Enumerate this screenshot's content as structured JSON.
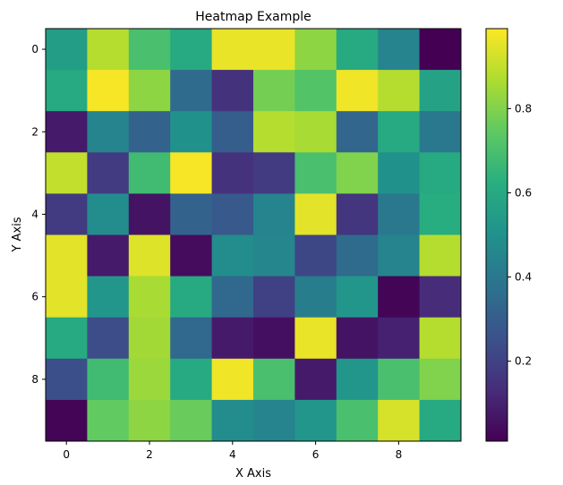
{
  "chart_data": {
    "type": "heatmap",
    "title": "Heatmap Example",
    "xlabel": "X Axis",
    "ylabel": "Y Axis",
    "x_ticks": [
      0,
      2,
      4,
      6,
      8
    ],
    "y_ticks": [
      0,
      2,
      4,
      6,
      8
    ],
    "xlim": [
      -0.5,
      9.5
    ],
    "ylim": [
      9.5,
      -0.5
    ],
    "colormap": "viridis",
    "colorbar": {
      "range": [
        0.01,
        0.99
      ],
      "ticks": [
        0.2,
        0.4,
        0.6,
        0.8
      ],
      "tick_labels": [
        "0.2",
        "0.4",
        "0.6",
        "0.8"
      ]
    },
    "values": [
      [
        0.55,
        0.88,
        0.7,
        0.6,
        0.96,
        0.96,
        0.82,
        0.6,
        0.45,
        0.01
      ],
      [
        0.6,
        0.98,
        0.82,
        0.35,
        0.15,
        0.78,
        0.72,
        0.97,
        0.88,
        0.57
      ],
      [
        0.08,
        0.45,
        0.32,
        0.5,
        0.3,
        0.88,
        0.86,
        0.33,
        0.6,
        0.4
      ],
      [
        0.9,
        0.18,
        0.68,
        0.98,
        0.15,
        0.18,
        0.7,
        0.8,
        0.5,
        0.6
      ],
      [
        0.18,
        0.48,
        0.06,
        0.32,
        0.28,
        0.45,
        0.95,
        0.16,
        0.4,
        0.62
      ],
      [
        0.95,
        0.08,
        0.94,
        0.04,
        0.48,
        0.46,
        0.22,
        0.35,
        0.45,
        0.88
      ],
      [
        0.95,
        0.52,
        0.86,
        0.6,
        0.34,
        0.2,
        0.42,
        0.52,
        0.02,
        0.13
      ],
      [
        0.6,
        0.24,
        0.85,
        0.34,
        0.08,
        0.05,
        0.96,
        0.06,
        0.1,
        0.88
      ],
      [
        0.25,
        0.68,
        0.84,
        0.6,
        0.97,
        0.7,
        0.08,
        0.52,
        0.7,
        0.8
      ],
      [
        0.02,
        0.75,
        0.82,
        0.76,
        0.48,
        0.45,
        0.52,
        0.7,
        0.93,
        0.6
      ]
    ]
  }
}
